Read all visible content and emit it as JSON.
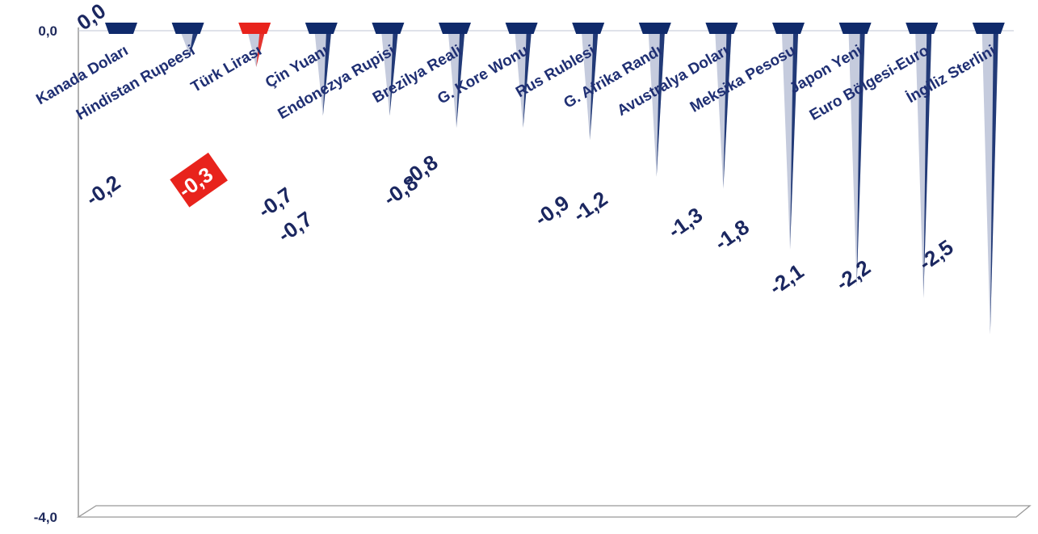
{
  "colors": {
    "bar": "#0f2a6b",
    "bar_light": "#c5cbdd",
    "highlight": "#e8231c",
    "axis": "#999999",
    "label": "#1f2f73"
  },
  "chart_data": {
    "type": "bar",
    "title": "",
    "xlabel": "",
    "ylabel": "",
    "ylim": [
      -4.0,
      0.0
    ],
    "yticks": [
      "0,0",
      "-4,0"
    ],
    "categories": [
      "Kanada Doları",
      "Hindistan Rupeesi",
      "Türk Lirası",
      "Çin Yuanı",
      "Endonezya Rupisi",
      "Brezilya Reali",
      "G. Kore Wonu",
      "Rus Rublesi",
      "G. Afrika Randı",
      "Avustralya Doları",
      "Meksika Pesosu",
      "Japon Yeni",
      "Euro Bölgesi-Euro",
      "İngiliz Sterlini"
    ],
    "values": [
      0.0,
      -0.2,
      -0.3,
      -0.7,
      -0.7,
      -0.8,
      -0.8,
      -0.9,
      -1.2,
      -1.3,
      -1.8,
      -2.1,
      -2.2,
      -2.5
    ],
    "value_labels": [
      "0,0",
      "-0,2",
      "-0,3",
      "-0,7",
      "-0,7",
      "-0,8",
      "-0,8",
      "-0,9",
      "-1,2",
      "-1,3",
      "-1,8",
      "-2,1",
      "-2,2",
      "-2,5"
    ],
    "highlight_category": "Türk Lirası",
    "grid": false,
    "legend": "none"
  }
}
